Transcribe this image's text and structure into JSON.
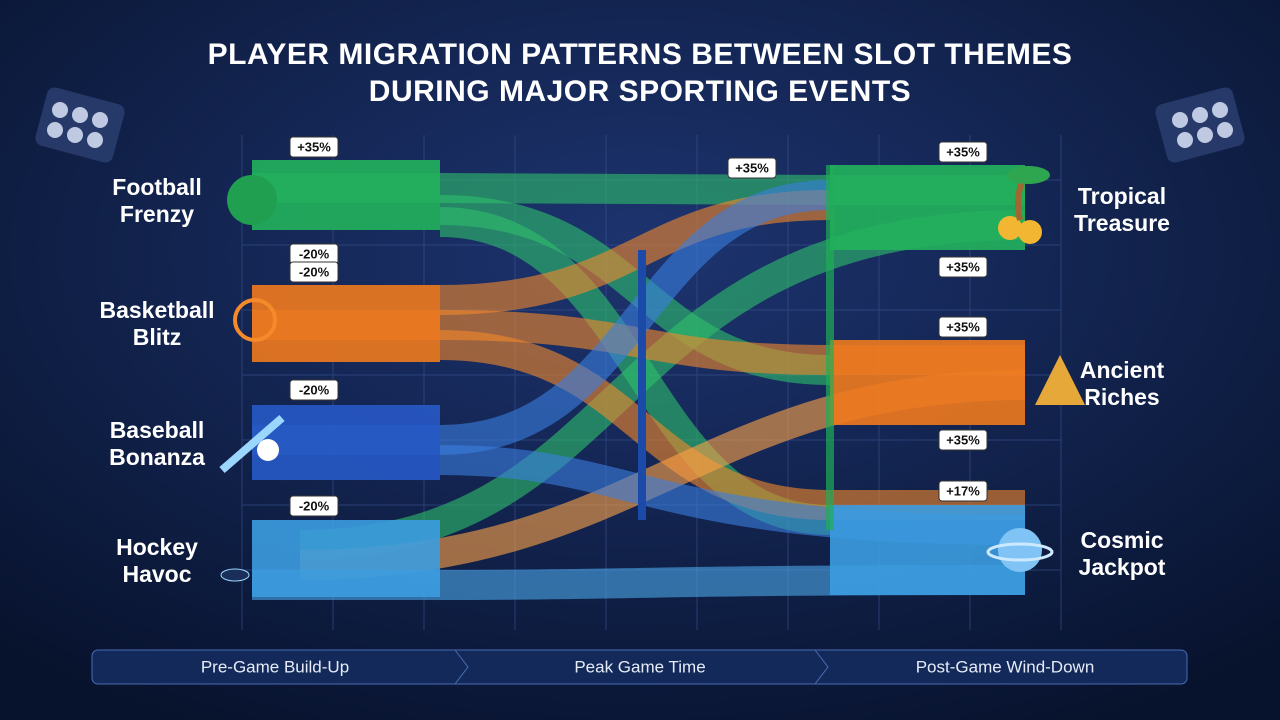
{
  "title": [
    "PLAYER MIGRATION PATTERNS BETWEEN SLOT THEMES",
    "DURING MAJOR SPORTING EVENTS"
  ],
  "sources": [
    {
      "label": [
        "Football",
        "Frenzy"
      ]
    },
    {
      "label": [
        "Basketball",
        "Blitz"
      ]
    },
    {
      "label": [
        "Baseball",
        "Bonanza"
      ]
    },
    {
      "label": [
        "Hockey",
        "Havoc"
      ]
    }
  ],
  "targets": [
    {
      "label": [
        "Tropical",
        "Treasure"
      ]
    },
    {
      "label": [
        "Ancient",
        "Riches"
      ]
    },
    {
      "label": [
        "Cosmic",
        "Jackpot"
      ]
    }
  ],
  "badges": [
    "+35%",
    "-20%",
    "-20%",
    "-20%",
    "-20%",
    "+35%",
    "+35%",
    "+35%",
    "+35%",
    "+35%",
    "+17%"
  ],
  "phases": [
    "Pre-Game Build-Up",
    "Peak Game Time",
    "Post-Game Wind-Down"
  ]
}
